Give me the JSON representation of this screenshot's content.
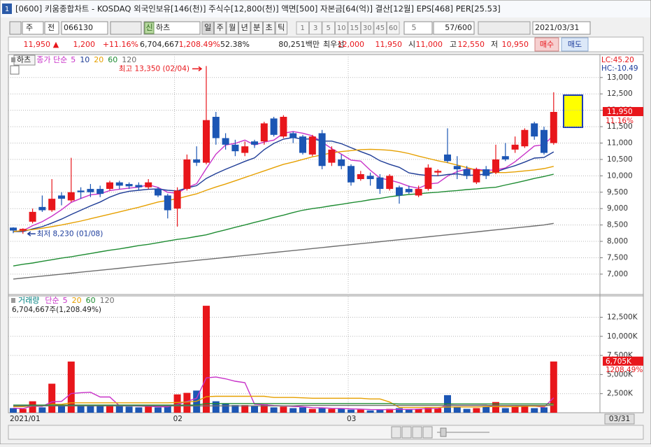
{
  "window": {
    "number": "1",
    "title": "[0600] 키움종합차트 - KOSDAQ 외국인보유[146(천)] 주식수[12,800(천)] 액면[500] 자본금[64(억)] 결산[12월] EPS[468] PER[25.53]"
  },
  "toolbar": {
    "period": "주",
    "prev": "전",
    "code": "066130",
    "new": "신",
    "name": "하츠",
    "intervals": [
      "일",
      "주",
      "월",
      "년",
      "분",
      "초",
      "틱"
    ],
    "minutes": [
      "1",
      "3",
      "5",
      "10",
      "15",
      "30",
      "45",
      "60"
    ],
    "step": "5",
    "count": "57/600",
    "date": "2021/03/31"
  },
  "quote": {
    "price": "11,950",
    "arrow": "▲",
    "change": "1,200",
    "rate": "+11.16%",
    "volume": "6,704,667",
    "volume_rate": "1,208.49%",
    "turnover": "52.38%",
    "amount": "80,251백만",
    "best_label": "최우선",
    "ask": "12,000",
    "bid": "11,950",
    "open_label": "시",
    "open": "11,000",
    "high_label": "고",
    "high": "12,550",
    "low_label": "저",
    "low": "10,950",
    "buy": "매수",
    "sell": "매도"
  },
  "chart_data": [
    {
      "type": "candlestick",
      "title": "하츠",
      "legend_label": "종가 단순",
      "up_color": "#e8161b",
      "down_color": "#1c56b4",
      "ylim": [
        6400,
        13700
      ],
      "yticks": [
        {
          "value": 7000,
          "label": "7,000"
        },
        {
          "value": 7500,
          "label": "7,500"
        },
        {
          "value": 8000,
          "label": "8,000"
        },
        {
          "value": 8500,
          "label": "8,500"
        },
        {
          "value": 9000,
          "label": "9,000"
        },
        {
          "value": 9500,
          "label": "9,500"
        },
        {
          "value": 10000,
          "label": "10,000"
        },
        {
          "value": 10500,
          "label": "10,500"
        },
        {
          "value": 11000,
          "label": "11,000"
        },
        {
          "value": 11500,
          "label": "11,500"
        },
        {
          "value": 12000,
          "label": "12,000"
        },
        {
          "value": 12500,
          "label": "12,500"
        },
        {
          "value": 13000,
          "label": "13,000"
        }
      ],
      "grid": true,
      "open": [
        8420,
        8330,
        8600,
        9050,
        8950,
        9400,
        9250,
        9550,
        9600,
        9600,
        9600,
        9800,
        9750,
        9720,
        9650,
        9600,
        9400,
        9000,
        9600,
        10500,
        10400,
        11800,
        11150,
        10950,
        10700,
        11050,
        11050,
        11750,
        11200,
        11300,
        11200,
        10650,
        11300,
        10400,
        10500,
        10300,
        9900,
        10000,
        9950,
        9600,
        9650,
        9600,
        9400,
        9600,
        10100,
        10650,
        10300,
        10200,
        9800,
        10200,
        10100,
        10600,
        10800,
        10900,
        11600,
        11400,
        11000
      ],
      "high": [
        8430,
        8400,
        9000,
        9400,
        9900,
        9500,
        10550,
        9650,
        9750,
        9700,
        9850,
        9850,
        9800,
        9800,
        9900,
        9650,
        9450,
        9650,
        10650,
        10900,
        13350,
        11950,
        11300,
        11100,
        11050,
        11100,
        11650,
        11800,
        11850,
        11350,
        11250,
        11250,
        11400,
        10900,
        10650,
        10350,
        10150,
        10100,
        10050,
        10050,
        9700,
        9700,
        9700,
        10350,
        10200,
        11450,
        10600,
        10300,
        10250,
        10300,
        10950,
        11000,
        11200,
        11450,
        11650,
        11500,
        12550
      ],
      "low": [
        8250,
        8230,
        8550,
        8900,
        8900,
        9100,
        9200,
        9300,
        9350,
        9350,
        9550,
        9600,
        9600,
        9550,
        9600,
        9350,
        8700,
        8450,
        9550,
        10300,
        10350,
        10950,
        10800,
        10600,
        10600,
        10850,
        10950,
        11200,
        11150,
        11000,
        10650,
        10600,
        10200,
        10300,
        10200,
        9700,
        9850,
        9700,
        9450,
        9550,
        9150,
        9450,
        9350,
        9550,
        10000,
        10400,
        9900,
        9900,
        9750,
        9900,
        10050,
        10450,
        10700,
        10850,
        11100,
        10650,
        10950
      ],
      "close": [
        8330,
        8380,
        8900,
        8950,
        9300,
        9300,
        9500,
        9500,
        9500,
        9450,
        9800,
        9700,
        9680,
        9650,
        9800,
        9400,
        8950,
        9550,
        10500,
        10400,
        11700,
        11150,
        10950,
        10750,
        10900,
        10950,
        11600,
        11250,
        11800,
        11150,
        10700,
        11200,
        10300,
        10800,
        10300,
        9800,
        10050,
        9900,
        9600,
        10000,
        9400,
        9500,
        9600,
        10250,
        10150,
        10450,
        10200,
        10000,
        10200,
        10000,
        10500,
        10500,
        10950,
        11400,
        11200,
        10700,
        11950
      ],
      "series": [
        {
          "name": "5",
          "color": "#c832c8",
          "values": [
            8300,
            8320,
            8480,
            8600,
            8770,
            8966,
            9190,
            9310,
            9420,
            9450,
            9550,
            9590,
            9626,
            9656,
            9726,
            9646,
            9496,
            9470,
            9640,
            9760,
            10220,
            10660,
            10940,
            10990,
            11090,
            10940,
            11030,
            11090,
            11300,
            11350,
            11300,
            11220,
            11030,
            10830,
            10660,
            10480,
            10450,
            10170,
            9930,
            9870,
            9790,
            9680,
            9620,
            9750,
            9780,
            9990,
            10130,
            10210,
            10200,
            10170,
            10180,
            10240,
            10430,
            10670,
            10910,
            10950,
            11240
          ]
        },
        {
          "name": "10",
          "color": "#1e3c96",
          "values": [
            8300,
            8300,
            8380,
            8450,
            8560,
            8680,
            8820,
            8950,
            9080,
            9200,
            9350,
            9460,
            9530,
            9560,
            9590,
            9600,
            9560,
            9540,
            9630,
            9700,
            9920,
            10070,
            10200,
            10320,
            10440,
            10550,
            10800,
            10990,
            11120,
            11170,
            11120,
            11130,
            11060,
            11060,
            10980,
            10860,
            10740,
            10630,
            10460,
            10350,
            10260,
            10090,
            10040,
            10010,
            10000,
            10040,
            10060,
            10010,
            10030,
            10050,
            10120,
            10220,
            10310,
            10420,
            10540,
            10560,
            10730
          ]
        },
        {
          "name": "20",
          "color": "#e6a000",
          "values": [
            8300,
            8330,
            8360,
            8400,
            8450,
            8500,
            8560,
            8620,
            8690,
            8760,
            8830,
            8900,
            8970,
            9040,
            9120,
            9200,
            9250,
            9300,
            9380,
            9450,
            9560,
            9660,
            9750,
            9850,
            9950,
            10050,
            10150,
            10250,
            10350,
            10420,
            10500,
            10580,
            10640,
            10700,
            10740,
            10770,
            10800,
            10810,
            10800,
            10780,
            10740,
            10680,
            10600,
            10530,
            10460,
            10400,
            10330,
            10250,
            10180,
            10130,
            10100,
            10100,
            10120,
            10150,
            10180,
            10220,
            10290
          ]
        },
        {
          "name": "60",
          "color": "#1e8c32",
          "values": [
            7250,
            7300,
            7340,
            7390,
            7440,
            7490,
            7530,
            7580,
            7630,
            7680,
            7730,
            7770,
            7820,
            7870,
            7910,
            7960,
            8010,
            8060,
            8100,
            8150,
            8200,
            8280,
            8350,
            8430,
            8500,
            8580,
            8650,
            8730,
            8800,
            8880,
            8950,
            9000,
            9040,
            9090,
            9130,
            9180,
            9220,
            9270,
            9310,
            9360,
            9400,
            9430,
            9450,
            9480,
            9500,
            9530,
            9550,
            9580,
            9600,
            9630,
            9650,
            9720,
            9780,
            9850,
            9920,
            9980,
            10050
          ]
        },
        {
          "name": "120",
          "color": "#6e6e6e",
          "values": [
            6850,
            6880,
            6910,
            6940,
            6970,
            7000,
            7030,
            7060,
            7090,
            7120,
            7150,
            7180,
            7210,
            7240,
            7270,
            7300,
            7330,
            7360,
            7390,
            7420,
            7450,
            7480,
            7510,
            7540,
            7570,
            7600,
            7630,
            7660,
            7690,
            7720,
            7750,
            7780,
            7810,
            7840,
            7870,
            7900,
            7930,
            7960,
            7990,
            8020,
            8050,
            8080,
            8110,
            8140,
            8170,
            8200,
            8230,
            8260,
            8290,
            8320,
            8350,
            8380,
            8410,
            8440,
            8470,
            8500,
            8550
          ]
        }
      ],
      "annotations": [
        "최고 13,350 (02/04)",
        "최저 8,230 (01/08)"
      ],
      "lc_label": "LC:45.20",
      "hc_label": "HC:-10.49",
      "last_label": "11,950",
      "change_label": "11.16%"
    },
    {
      "type": "bar",
      "title": "거래량",
      "legend_label": "단순",
      "info": "6,704,667주(1,208.49%)",
      "categories": [
        "2021/01",
        null,
        null,
        null,
        null,
        null,
        null,
        null,
        null,
        null,
        null,
        null,
        null,
        null,
        null,
        null,
        null,
        "02",
        null,
        null,
        null,
        null,
        null,
        null,
        null,
        null,
        null,
        null,
        null,
        null,
        null,
        null,
        null,
        null,
        null,
        "03",
        null,
        null,
        null,
        null,
        null,
        null,
        null,
        null,
        null,
        null,
        null,
        null,
        null,
        null,
        null,
        null,
        null,
        null,
        null,
        null,
        null
      ],
      "cursor_date": "03/31",
      "ylim": [
        0,
        15200
      ],
      "yticks": [
        {
          "value": 2500,
          "label": "2,500K"
        },
        {
          "value": 5000,
          "label": "5,000K"
        },
        {
          "value": 7500,
          "label": "7,500K"
        },
        {
          "value": 10000,
          "label": "10,000K"
        },
        {
          "value": 12500,
          "label": "12,500K"
        }
      ],
      "grid": true,
      "values": [
        600,
        500,
        1500,
        700,
        3800,
        900,
        6700,
        1000,
        1000,
        900,
        1000,
        900,
        800,
        700,
        800,
        700,
        900,
        2400,
        2600,
        2900,
        14000,
        1500,
        1200,
        1000,
        1000,
        900,
        1100,
        700,
        800,
        600,
        700,
        500,
        600,
        500,
        500,
        400,
        400,
        300,
        400,
        500,
        600,
        400,
        500,
        700,
        600,
        2300,
        700,
        500,
        600,
        800,
        1400,
        600,
        800,
        900,
        600,
        700,
        6705
      ],
      "series": [
        {
          "name": "5",
          "color": "#c832c8",
          "values": [
            600,
            550,
            870,
            830,
            1420,
            1480,
            2520,
            2620,
            2680,
            2060,
            2060,
            900,
            920,
            860,
            840,
            780,
            780,
            1100,
            1480,
            1900,
            4560,
            4680,
            4440,
            4120,
            3940,
            1120,
            1040,
            940,
            900,
            820,
            780,
            660,
            640,
            580,
            560,
            500,
            480,
            420,
            400,
            400,
            440,
            440,
            480,
            540,
            560,
            1000,
            960,
            960,
            960,
            980,
            800,
            780,
            840,
            940,
            860,
            720,
            1960
          ]
        },
        {
          "name": "20",
          "color": "#e6a000",
          "values": [
            800,
            800,
            900,
            900,
            1100,
            1100,
            1300,
            1300,
            1300,
            1300,
            1300,
            1300,
            1300,
            1300,
            1300,
            1300,
            1300,
            1350,
            1400,
            1500,
            2100,
            2150,
            2150,
            2150,
            2150,
            2150,
            2150,
            2000,
            2000,
            2000,
            1950,
            1900,
            1900,
            1900,
            1900,
            1900,
            1900,
            1800,
            1800,
            1400,
            700,
            700,
            700,
            700,
            700,
            750,
            750,
            750,
            750,
            800,
            800,
            800,
            800,
            850,
            850,
            850,
            1100
          ]
        },
        {
          "name": "60",
          "color": "#1e8c32",
          "values": [
            1000,
            1000,
            1000,
            1000,
            1000,
            1000,
            1000,
            1000,
            1000,
            1000,
            1000,
            1000,
            1000,
            1000,
            1000,
            1000,
            1000,
            1000,
            1000,
            1000,
            1200,
            1200,
            1200,
            1200,
            1200,
            1200,
            1200,
            1200,
            1200,
            1200,
            1200,
            1200,
            1200,
            1200,
            1200,
            1200,
            1200,
            1200,
            1200,
            1200,
            1150,
            1150,
            1150,
            1150,
            1150,
            1150,
            1150,
            1150,
            1150,
            1150,
            1150,
            1150,
            1150,
            1150,
            1150,
            1150,
            1150
          ]
        },
        {
          "name": "120",
          "color": "#6e6e6e",
          "values": [
            900,
            900,
            900,
            900,
            900,
            900,
            900,
            900,
            900,
            900,
            900,
            900,
            900,
            900,
            900,
            900,
            900,
            900,
            900,
            900,
            900,
            900,
            900,
            900,
            900,
            900,
            900,
            900,
            900,
            900,
            950,
            950,
            950,
            950,
            950,
            950,
            950,
            950,
            950,
            950,
            950,
            950,
            950,
            950,
            950,
            950,
            950,
            950,
            950,
            950,
            950,
            950,
            950,
            950,
            950,
            950,
            950
          ]
        }
      ],
      "last_label": "6,705K",
      "change_label": "1208.49%"
    }
  ]
}
